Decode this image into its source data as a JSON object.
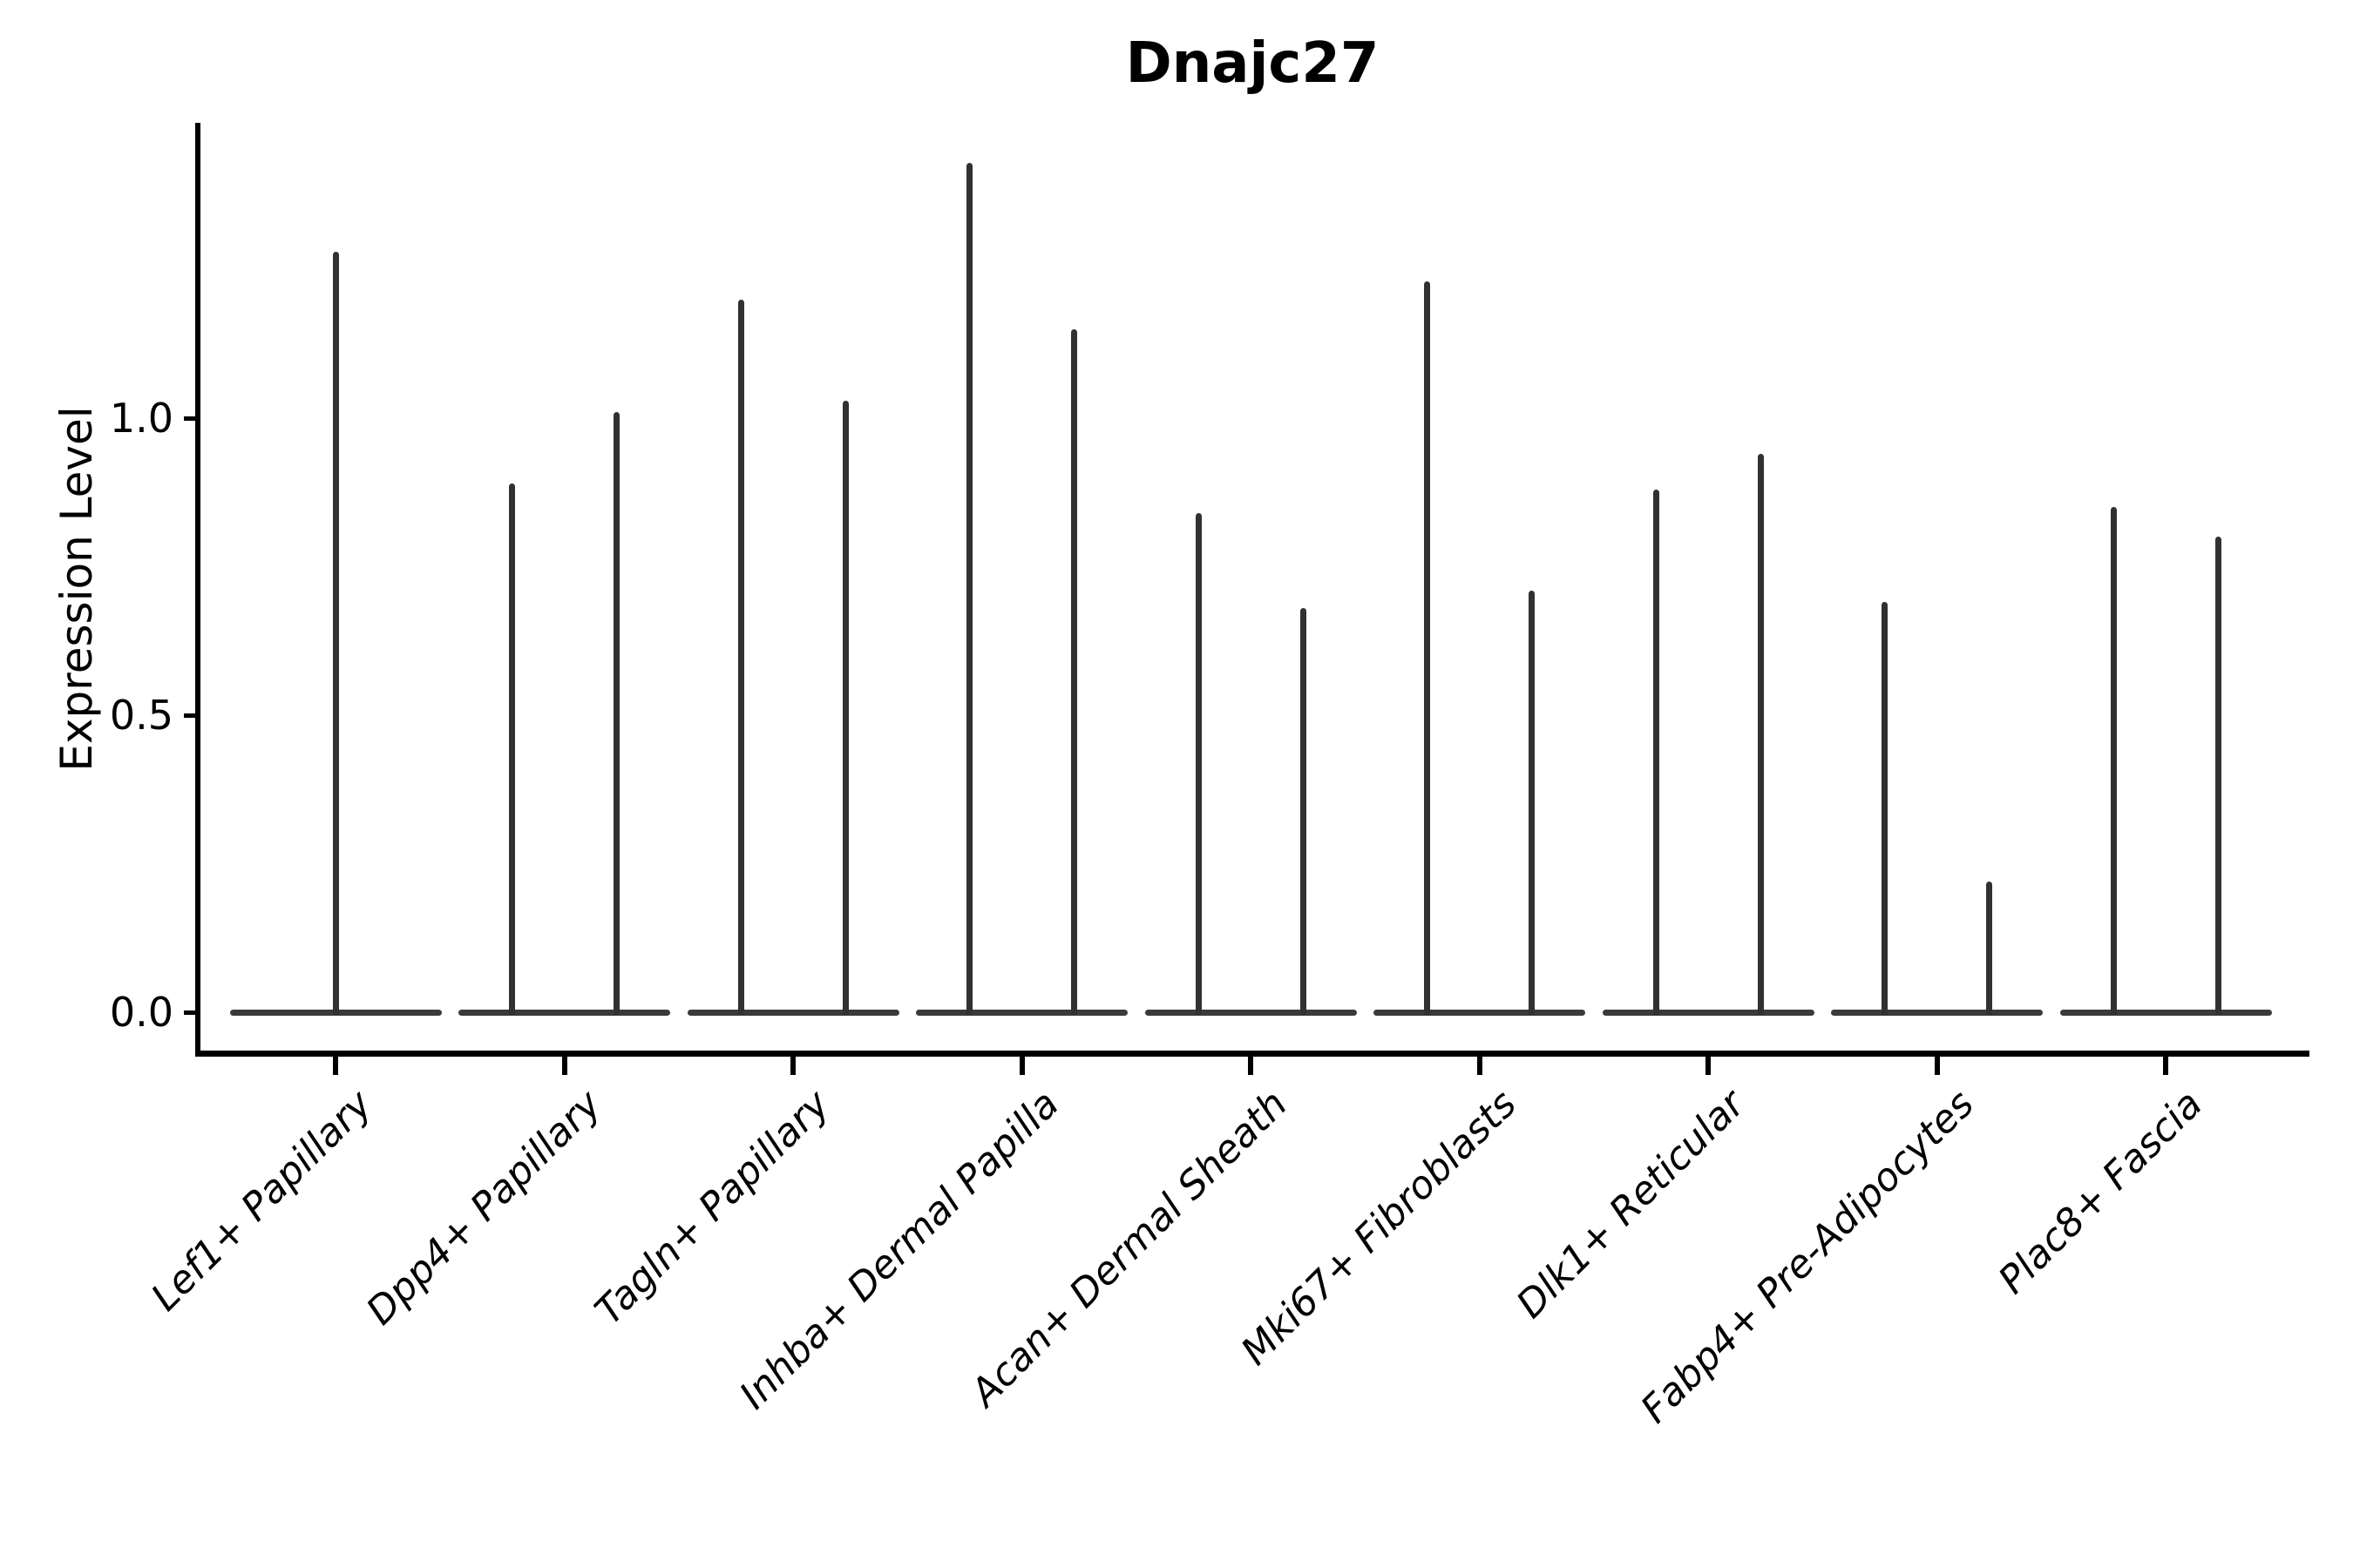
{
  "chart_data": {
    "type": "violin",
    "title": "Dnajc27",
    "xlabel": "",
    "ylabel": "Expression Level",
    "ytick_labels": [
      "0.0",
      "0.5",
      "1.0"
    ],
    "ytick_values": [
      0.0,
      0.5,
      1.0
    ],
    "ylim": [
      -0.07,
      1.5
    ],
    "grid": false,
    "legend": "none",
    "violin_color": "#3a3a3a",
    "axis_color": "#000000",
    "description": "Violin plot of gene expression; each violin is collapsed to a flat bar at 0 with a thin vertical density spike rising to the maximum expression value.",
    "categories": [
      {
        "label": "Lef1+ Papillary",
        "violin_maxima": [
          1.28
        ]
      },
      {
        "label": "Dpp4+ Papillary",
        "violin_maxima": [
          0.89,
          1.01
        ]
      },
      {
        "label": "Tagln+ Papillary",
        "violin_maxima": [
          1.2,
          1.03
        ]
      },
      {
        "label": "Inhba+ Dermal Papilla",
        "violin_maxima": [
          1.43,
          1.15
        ]
      },
      {
        "label": "Acan+ Dermal Sheath",
        "violin_maxima": [
          0.84,
          0.68
        ]
      },
      {
        "label": "Mki67+ Fibroblasts",
        "violin_maxima": [
          1.23,
          0.71
        ]
      },
      {
        "label": "Dlk1+ Reticular",
        "violin_maxima": [
          0.88,
          0.94
        ]
      },
      {
        "label": "Fabp4+ Pre-Adipocytes",
        "violin_maxima": [
          0.69,
          0.22
        ]
      },
      {
        "label": "Plac8+ Fascia",
        "violin_maxima": [
          0.85,
          0.8
        ]
      }
    ]
  }
}
